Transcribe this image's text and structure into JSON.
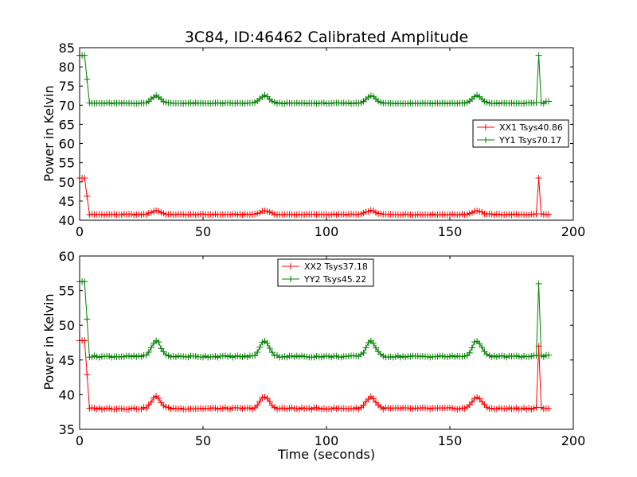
{
  "chart_data": [
    {
      "type": "line",
      "title": "3C84, ID:46462 Calibrated Amplitude",
      "xlabel": "",
      "ylabel": "Power in Kelvin",
      "xlim": [
        0,
        200
      ],
      "ylim": [
        40,
        85
      ],
      "xticks": [
        0,
        50,
        100,
        150,
        200
      ],
      "yticks": [
        40,
        45,
        50,
        55,
        60,
        65,
        70,
        75,
        80,
        85
      ],
      "grid": false,
      "legend_position": "center-right",
      "series": [
        {
          "name": "XX1 Tsys40.86",
          "color": "#ff0000",
          "marker": "+",
          "base": 41.5,
          "bump_height": 1.0,
          "bumps": [
            31,
            75,
            118,
            161
          ],
          "start_value": 51.0,
          "end_value": 41.5,
          "spike_x": 186,
          "spike_value": 51.0
        },
        {
          "name": "YY1 Tsys70.17",
          "color": "#008000",
          "marker": "+",
          "base": 70.5,
          "bump_height": 2.0,
          "bumps": [
            31,
            75,
            118,
            161
          ],
          "start_value": 83.0,
          "end_value": 71.0,
          "spike_x": 186,
          "spike_value": 83.0
        }
      ]
    },
    {
      "type": "line",
      "title": "",
      "xlabel": "Time (seconds)",
      "ylabel": "Power in Kelvin",
      "xlim": [
        0,
        200
      ],
      "ylim": [
        35,
        60
      ],
      "xticks": [
        0,
        50,
        100,
        150,
        200
      ],
      "yticks": [
        35,
        40,
        45,
        50,
        55,
        60
      ],
      "grid": false,
      "legend_position": "top-center",
      "series": [
        {
          "name": "XX2 Tsys37.18",
          "color": "#ff0000",
          "marker": "+",
          "base": 38.0,
          "bump_height": 1.7,
          "bumps": [
            31,
            75,
            118,
            161
          ],
          "start_value": 47.8,
          "end_value": 38.0,
          "spike_x": 186,
          "spike_value": 47.0
        },
        {
          "name": "YY2 Tsys45.22",
          "color": "#008000",
          "marker": "+",
          "base": 45.5,
          "bump_height": 2.3,
          "bumps": [
            31,
            75,
            118,
            161
          ],
          "start_value": 56.3,
          "end_value": 45.7,
          "spike_x": 186,
          "spike_value": 56.0
        }
      ]
    }
  ]
}
